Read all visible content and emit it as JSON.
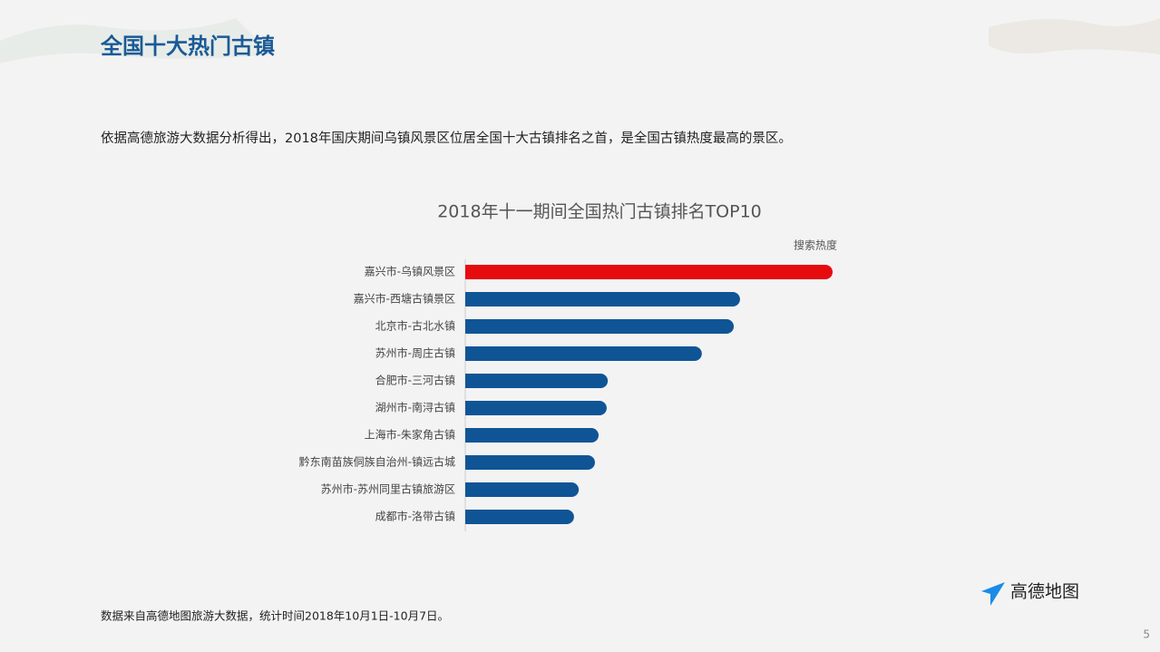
{
  "slide": {
    "title": "全国十大热门古镇",
    "description": "依据高德旅游大数据分析得出，2018年国庆期间乌镇风景区位居全国十大古镇排名之首，是全国古镇热度最高的景区。",
    "source": "数据来自高德地图旅游大数据，统计时间2018年10月1日-10月7日。",
    "logo": "高德地图",
    "page": "5"
  },
  "chart_data": {
    "type": "hbar",
    "title": "2018年十一期间全国热门古镇排名TOP10",
    "value_label": "搜索热度",
    "categories": [
      "嘉兴市-乌镇风景区",
      "嘉兴市-西塘古镇景区",
      "北京市-古北水镇",
      "苏州市-周庄古镇",
      "合肥市-三河古镇",
      "湖州市-南浔古镇",
      "上海市-朱家角古镇",
      "黔东南苗族侗族自治州-镇远古城",
      "苏州市-苏州同里古镇旅游区",
      "成都市-洛带古镇"
    ],
    "values": [
      100,
      74.8,
      73.1,
      64.4,
      38.8,
      38.5,
      36.3,
      35.3,
      30.9,
      29.6
    ],
    "colors": [
      "#e60b0e",
      "#0f5596",
      "#0f5596",
      "#0f5596",
      "#0f5596",
      "#0f5596",
      "#0f5596",
      "#0f5596",
      "#0f5596",
      "#0f5596"
    ],
    "xlim": [
      0,
      100
    ]
  }
}
